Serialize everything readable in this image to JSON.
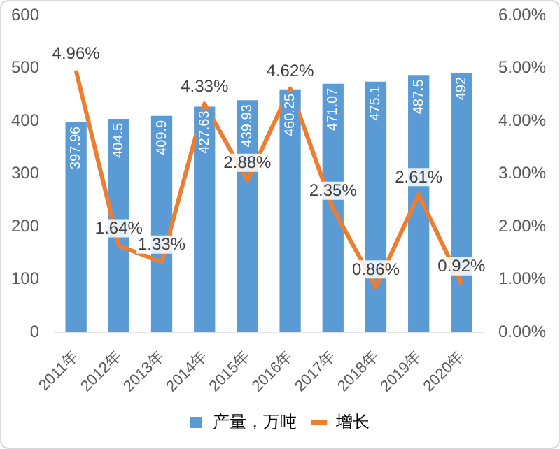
{
  "chart_data": {
    "type": "bar",
    "categories": [
      "2011年",
      "2012年",
      "2013年",
      "2014年",
      "2015年",
      "2016年",
      "2017年",
      "2018年",
      "2019年",
      "2020年"
    ],
    "series": [
      {
        "name": "产量，万吨",
        "color": "#5b9bd5",
        "values": [
          397.96,
          404.5,
          409.9,
          427.63,
          439.93,
          460.25,
          471.07,
          475.1,
          487.5,
          492
        ],
        "value_labels": [
          "397.96",
          "404.5",
          "409.9",
          "427.63",
          "439.93",
          "460.25",
          "471.07",
          "475.1",
          "487.5",
          "492"
        ]
      },
      {
        "name": "增长",
        "type": "line",
        "axis": "y2",
        "color": "#ed7d31",
        "values": [
          4.96,
          1.64,
          1.33,
          4.33,
          2.88,
          4.62,
          2.35,
          0.86,
          2.61,
          0.92
        ],
        "value_labels": [
          "4.96%",
          "1.64%",
          "1.33%",
          "4.33%",
          "2.88%",
          "4.62%",
          "2.35%",
          "0.86%",
          "2.61%",
          "0.92%"
        ]
      }
    ],
    "ylim": [
      0,
      600
    ],
    "yticks": [
      0,
      100,
      200,
      300,
      400,
      500,
      600
    ],
    "y2lim": [
      0,
      6
    ],
    "y2ticks": [
      {
        "value": 0,
        "label": "0.00%"
      },
      {
        "value": 1,
        "label": "1.00%"
      },
      {
        "value": 2,
        "label": "2.00%"
      },
      {
        "value": 3,
        "label": "3.00%"
      },
      {
        "value": 4,
        "label": "4.00%"
      },
      {
        "value": 5,
        "label": "5.00%"
      },
      {
        "value": 6,
        "label": "6.00%"
      }
    ],
    "grid": false,
    "legend": "bottom",
    "marker": "none",
    "line_style": "solid"
  }
}
